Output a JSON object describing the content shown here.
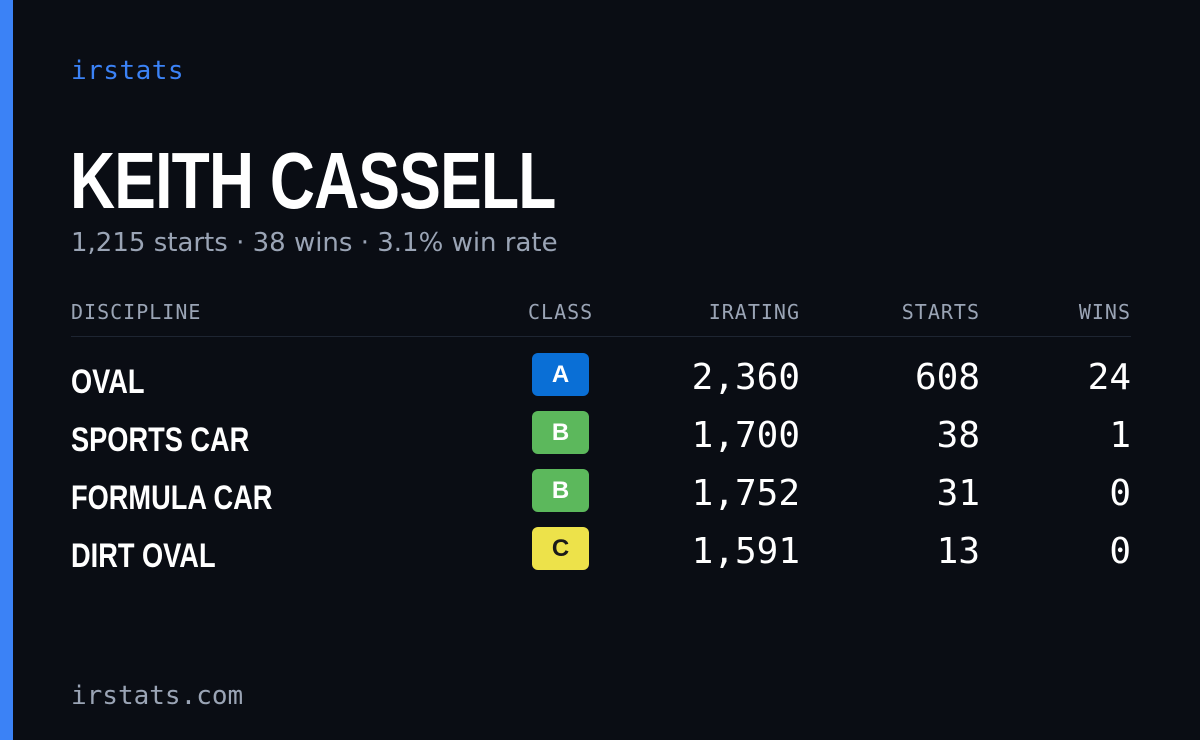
{
  "brand": "irstats",
  "driver": {
    "name": "KEITH CASSELL",
    "summary": "1,215 starts · 38 wins · 3.1% win rate"
  },
  "table": {
    "headers": {
      "discipline": "DISCIPLINE",
      "class": "CLASS",
      "irating": "IRATING",
      "starts": "STARTS",
      "wins": "WINS"
    },
    "rows": [
      {
        "discipline": "OVAL",
        "class": "A",
        "class_color": "#0a6fd6",
        "class_text_color": "#ffffff",
        "irating": "2,360",
        "starts": "608",
        "wins": "24"
      },
      {
        "discipline": "SPORTS CAR",
        "class": "B",
        "class_color": "#5cb85c",
        "class_text_color": "#ffffff",
        "irating": "1,700",
        "starts": "38",
        "wins": "1"
      },
      {
        "discipline": "FORMULA CAR",
        "class": "B",
        "class_color": "#5cb85c",
        "class_text_color": "#ffffff",
        "irating": "1,752",
        "starts": "31",
        "wins": "0"
      },
      {
        "discipline": "DIRT OVAL",
        "class": "C",
        "class_color": "#ede24a",
        "class_text_color": "#1a1a1a",
        "irating": "1,591",
        "starts": "13",
        "wins": "0"
      }
    ]
  },
  "footer": "irstats.com",
  "colors": {
    "background": "#0a0d14",
    "accent": "#3b82f6",
    "muted_text": "#9aa4b5"
  }
}
